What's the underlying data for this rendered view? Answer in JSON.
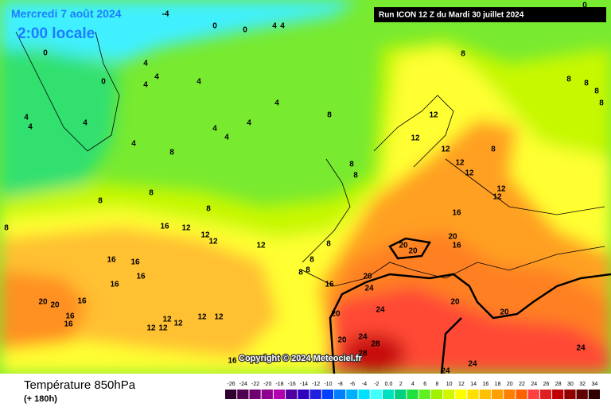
{
  "header": {
    "date": "Mercredi 7 août 2024",
    "time": "2:00 locale",
    "run": "Run ICON 12 Z du Mardi 30 juillet 2024"
  },
  "copyright": "Copyright © 2024 Meteociel.fr",
  "footer": {
    "title": "Température 850hPa",
    "lead": "(+ 180h)"
  },
  "legend": [
    {
      "label": "-26",
      "color": "#300030"
    },
    {
      "label": "-24",
      "color": "#500050"
    },
    {
      "label": "-22",
      "color": "#700070"
    },
    {
      "label": "-20",
      "color": "#900090"
    },
    {
      "label": "-18",
      "color": "#b000b0"
    },
    {
      "label": "-16",
      "color": "#5000a0"
    },
    {
      "label": "-14",
      "color": "#3000c0"
    },
    {
      "label": "-12",
      "color": "#2020e0"
    },
    {
      "label": "-10",
      "color": "#0040ff"
    },
    {
      "label": "-8",
      "color": "#0080ff"
    },
    {
      "label": "-6",
      "color": "#00b0ff"
    },
    {
      "label": "-4",
      "color": "#00e0ff"
    },
    {
      "label": "-2",
      "color": "#40ffff"
    },
    {
      "label": "0.0",
      "color": "#00e0c0"
    },
    {
      "label": "2",
      "color": "#00d080"
    },
    {
      "label": "4",
      "color": "#20e040"
    },
    {
      "label": "6",
      "color": "#60f020"
    },
    {
      "label": "8",
      "color": "#a0f000"
    },
    {
      "label": "10",
      "color": "#d0f800"
    },
    {
      "label": "12",
      "color": "#ffff00"
    },
    {
      "label": "14",
      "color": "#ffe000"
    },
    {
      "label": "16",
      "color": "#ffc000"
    },
    {
      "label": "18",
      "color": "#ffa000"
    },
    {
      "label": "20",
      "color": "#ff8000"
    },
    {
      "label": "22",
      "color": "#ff6000"
    },
    {
      "label": "24",
      "color": "#ff4040"
    },
    {
      "label": "26",
      "color": "#e02020"
    },
    {
      "label": "28",
      "color": "#c00000"
    },
    {
      "label": "30",
      "color": "#900000"
    },
    {
      "label": "32",
      "color": "#600000"
    },
    {
      "label": "34",
      "color": "#300000"
    }
  ],
  "contour_labels": [
    "0",
    "0",
    "0",
    "0",
    "4",
    "4",
    "-4",
    "0",
    "4",
    "4",
    "4",
    "4",
    "4",
    "4",
    "4",
    "4",
    "4",
    "4",
    "4",
    "4",
    "8",
    "8",
    "8",
    "8",
    "8",
    "8",
    "8",
    "8",
    "8",
    "8",
    "8",
    "8",
    "8",
    "8",
    "8",
    "8",
    "8",
    "8",
    "12",
    "12",
    "12",
    "12",
    "12",
    "12",
    "12",
    "16",
    "12",
    "12",
    "12",
    "12",
    "16",
    "16",
    "16",
    "16",
    "16",
    "16",
    "20",
    "20",
    "16",
    "16",
    "12",
    "12",
    "12",
    "12",
    "12",
    "12",
    "16",
    "20",
    "24",
    "20",
    "20",
    "20",
    "16",
    "20",
    "24",
    "20",
    "20",
    "20",
    "24",
    "28",
    "28",
    "24",
    "24",
    "24",
    "16"
  ]
}
